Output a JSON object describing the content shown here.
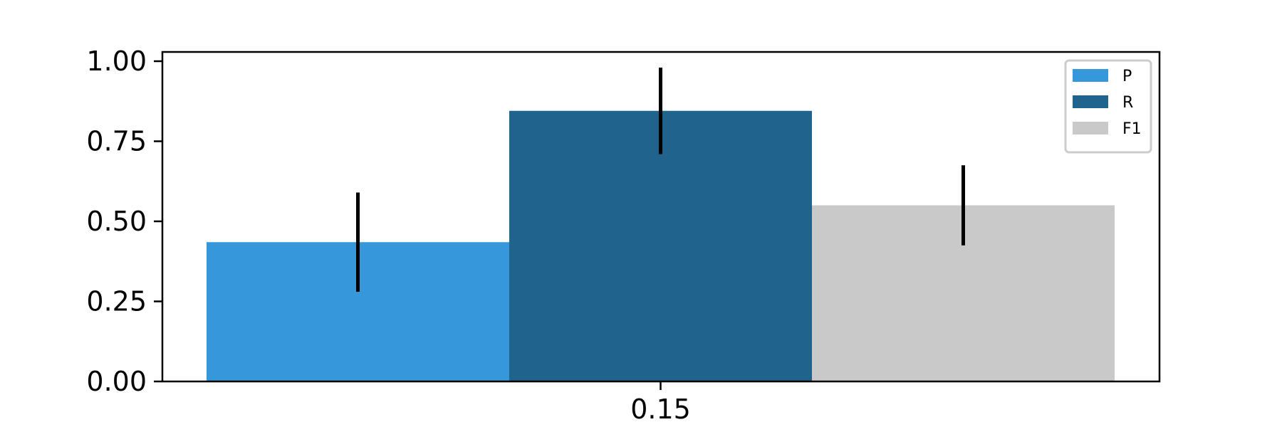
{
  "chart_data": {
    "type": "bar",
    "categories": [
      "0.15"
    ],
    "series": [
      {
        "name": "P",
        "values": [
          0.435
        ],
        "error": [
          0.155
        ],
        "color": "#3698db"
      },
      {
        "name": "R",
        "values": [
          0.845
        ],
        "error": [
          0.135
        ],
        "color": "#20638c"
      },
      {
        "name": "F1",
        "values": [
          0.55
        ],
        "error": [
          0.125
        ],
        "color": "#c9c9c9"
      }
    ],
    "ylim": [
      0,
      1.0
    ],
    "yticks": [
      "0.00",
      "0.25",
      "0.50",
      "0.75",
      "1.00"
    ],
    "xlabel": "",
    "ylabel": "",
    "title": "",
    "grid": false,
    "legend_position": "top-right",
    "error_bar_color": "#000000"
  }
}
